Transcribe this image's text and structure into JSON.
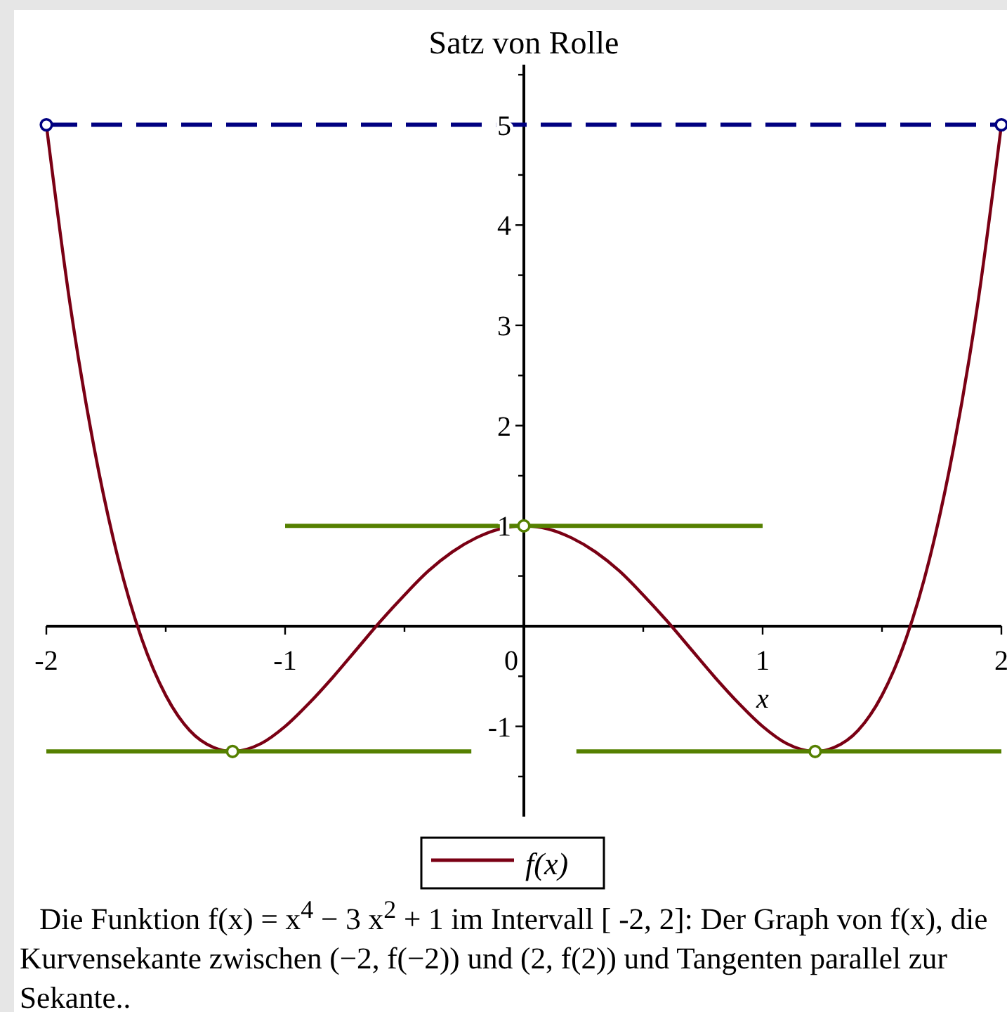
{
  "chart_data": {
    "type": "line",
    "title": "Satz von Rolle",
    "xlabel": "x",
    "xlim": [
      -2,
      2
    ],
    "ylim": [
      -1.9,
      5.6
    ],
    "xticks": [
      -2,
      {
        "value": -1.5,
        "label": null
      },
      -1,
      {
        "value": -0.5,
        "label": null
      },
      0,
      {
        "value": 0.5,
        "label": null
      },
      1,
      {
        "value": 1.5,
        "label": null
      },
      2
    ],
    "yticks": [
      {
        "value": -1.5,
        "label": null
      },
      -1,
      {
        "value": -0.5,
        "label": null
      },
      {
        "value": 0.5,
        "label": null
      },
      1,
      {
        "value": 1.5,
        "label": null
      },
      2,
      {
        "value": 2.5,
        "label": null
      },
      3,
      {
        "value": 3.5,
        "label": null
      },
      4,
      {
        "value": 4.5,
        "label": null
      },
      5,
      {
        "value": 5.5,
        "label": null
      }
    ],
    "legend": "bottom",
    "series": [
      {
        "name": "f(x)",
        "color": "#7a0014",
        "x": [
          -2,
          -1.9,
          -1.8,
          -1.7,
          -1.6,
          -1.5,
          -1.4,
          -1.3,
          -1.22,
          -1.1,
          -1,
          -0.9,
          -0.8,
          -0.7,
          -0.6,
          -0.5,
          -0.4,
          -0.3,
          -0.2,
          -0.1,
          0,
          0.1,
          0.2,
          0.3,
          0.4,
          0.5,
          0.6,
          0.7,
          0.8,
          0.9,
          1,
          1.1,
          1.22,
          1.3,
          1.4,
          1.5,
          1.6,
          1.7,
          1.8,
          1.9,
          2
        ],
        "values": [
          5,
          3.2,
          1.78,
          0.68,
          -0.13,
          -0.69,
          -1.04,
          -1.21,
          -1.25,
          -1.17,
          -1,
          -0.77,
          -0.51,
          -0.23,
          0.05,
          0.31,
          0.55,
          0.74,
          0.88,
          0.97,
          1,
          0.97,
          0.88,
          0.74,
          0.55,
          0.31,
          0.05,
          -0.23,
          -0.51,
          -0.77,
          -1,
          -1.17,
          -1.25,
          -1.21,
          -1.04,
          -0.69,
          -0.13,
          0.68,
          1.78,
          3.2,
          5
        ]
      },
      {
        "color": "#000080",
        "line_style": "dashed",
        "marker": "circle",
        "x": [
          -2,
          2
        ],
        "values": [
          5,
          5
        ]
      },
      {
        "color": "#558000",
        "x": [
          -1,
          1
        ],
        "values": [
          1,
          1
        ]
      },
      {
        "color": "#558000",
        "x": [
          -2,
          -0.22
        ],
        "values": [
          -1.25,
          -1.25
        ]
      },
      {
        "color": "#558000",
        "x": [
          0.22,
          2
        ],
        "values": [
          -1.25,
          -1.25
        ]
      },
      {
        "type": "scatter",
        "color": "#558000",
        "marker": "circle",
        "x": [
          -1.22,
          0,
          1.22
        ],
        "values": [
          -1.25,
          1,
          -1.25
        ]
      }
    ],
    "annotations": [
      "Die Funktion f(x) = x$^{4}$ − 3 x$^{2}$ + 1 im Intervall [ -2, 2]: Der Graph von f(x), die Kurvensekante zwischen (−2, f(−2)) und (2, f(2)) und Tangenten parallel zur Sekante.."
    ]
  }
}
